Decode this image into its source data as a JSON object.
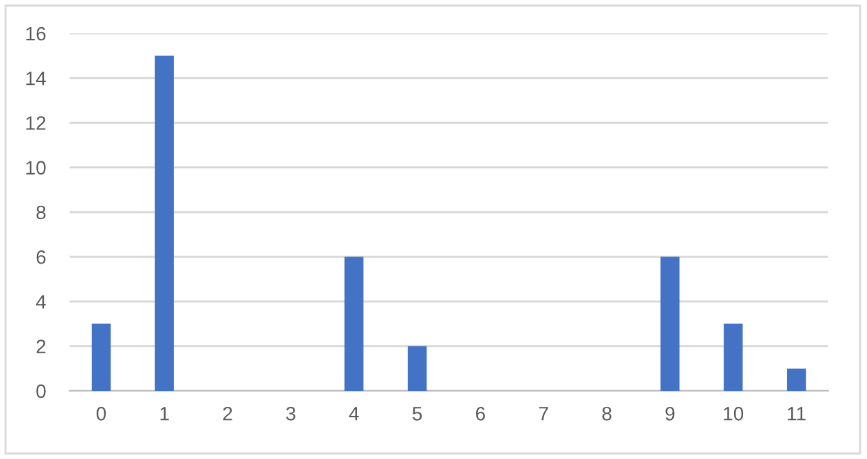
{
  "chart_data": {
    "type": "bar",
    "categories": [
      "0",
      "1",
      "2",
      "3",
      "4",
      "5",
      "6",
      "7",
      "8",
      "9",
      "10",
      "11"
    ],
    "values": [
      3,
      15,
      0,
      0,
      6,
      2,
      0,
      0,
      0,
      6,
      3,
      1
    ],
    "color": "#4472c4",
    "ylim": [
      0,
      16
    ],
    "yticks": [
      0,
      2,
      4,
      6,
      8,
      10,
      12,
      14,
      16
    ],
    "grid": "y",
    "legend": false
  }
}
